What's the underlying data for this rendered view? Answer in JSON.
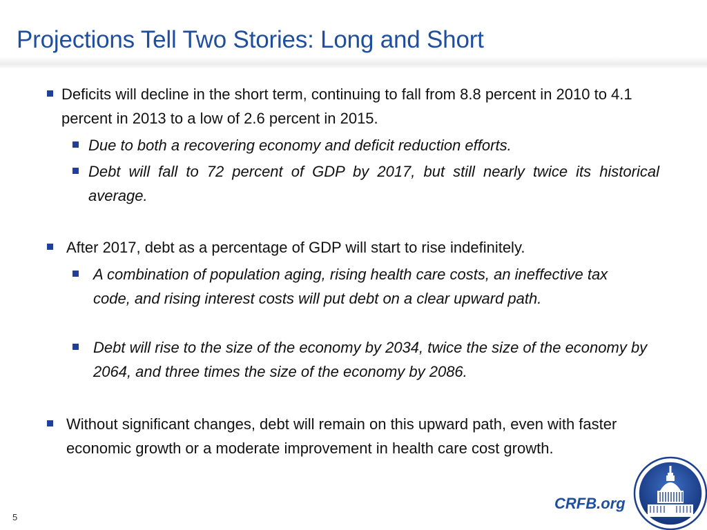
{
  "slide": {
    "title": "Projections Tell Two Stories: Long and Short",
    "page_number": "5",
    "site": "CRFB.org"
  },
  "bullets": [
    {
      "text": "Deficits will decline in the short term, continuing to fall from 8.8 percent in 2010 to 4.1 percent in 2013 to a low of 2.6 percent in 2015.",
      "sub": [
        "Due to both a recovering economy and deficit reduction efforts.",
        "Debt will fall to 72 percent of GDP by 2017, but still nearly twice its historical average."
      ]
    },
    {
      "text": "After 2017, debt as a percentage of GDP will start to rise indefinitely.",
      "sub": [
        "A combination of population aging, rising health care costs, an ineffective tax code, and rising interest costs will put debt on a clear upward path.",
        "Debt will rise to the size of the economy by 2034, twice the size of the economy by 2064, and three times the size of the economy by 2086."
      ]
    },
    {
      "text": "Without significant changes, debt will remain on this upward path, even with faster economic growth or a moderate improvement in health care cost growth.",
      "sub": []
    }
  ],
  "colors": {
    "title": "#1f4e9e",
    "bullet_marker": "#1f3f9a",
    "logo_ring": "#1c3f8f"
  },
  "icons": {
    "logo": "capitol-dome-seal-icon"
  }
}
